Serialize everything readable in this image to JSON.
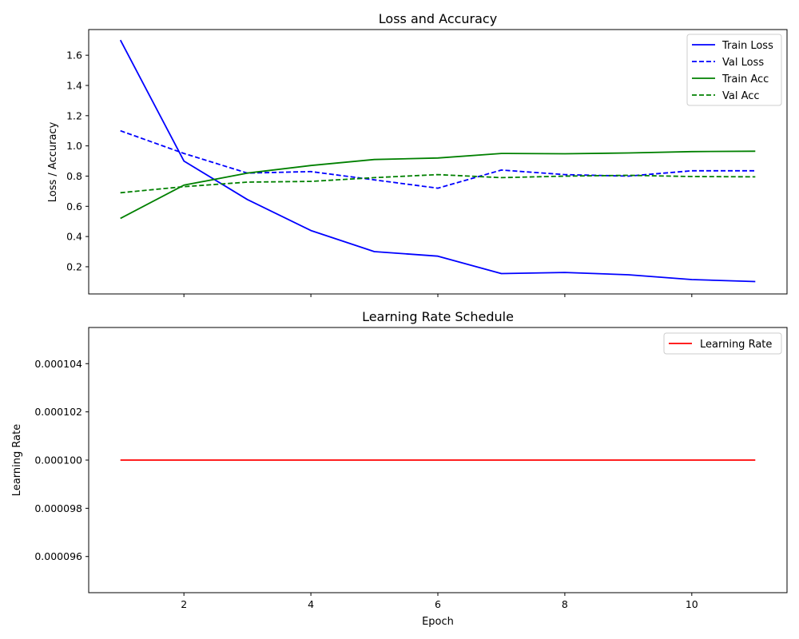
{
  "chart_data": [
    {
      "type": "line",
      "title": "Loss and Accuracy",
      "xlabel": "",
      "ylabel": "Loss / Accuracy",
      "xlim": [
        0.5,
        11.5
      ],
      "ylim": [
        0.02,
        1.77
      ],
      "x_ticks": [
        2,
        4,
        6,
        8,
        10
      ],
      "x_tick_labels_visible": false,
      "y_ticks": [
        0.2,
        0.4,
        0.6,
        0.8,
        1.0,
        1.2,
        1.4,
        1.6
      ],
      "y_tick_labels": [
        "0.2",
        "0.4",
        "0.6",
        "0.8",
        "1.0",
        "1.2",
        "1.4",
        "1.6"
      ],
      "grid": false,
      "legend": "top-right",
      "x": [
        1,
        2,
        3,
        4,
        5,
        6,
        7,
        8,
        9,
        10,
        11
      ],
      "series": [
        {
          "name": "Train Loss",
          "color": "#0000ff",
          "style": "solid",
          "values": [
            1.7,
            0.9,
            0.645,
            0.44,
            0.3,
            0.27,
            0.155,
            0.162,
            0.147,
            0.115,
            0.102
          ]
        },
        {
          "name": "Val Loss",
          "color": "#0000ff",
          "style": "dashed",
          "values": [
            1.1,
            0.95,
            0.82,
            0.83,
            0.775,
            0.72,
            0.84,
            0.81,
            0.8,
            0.835,
            0.835
          ]
        },
        {
          "name": "Train Acc",
          "color": "#008000",
          "style": "solid",
          "values": [
            0.52,
            0.74,
            0.82,
            0.87,
            0.91,
            0.92,
            0.95,
            0.948,
            0.953,
            0.962,
            0.965
          ]
        },
        {
          "name": "Val Acc",
          "color": "#008000",
          "style": "dashed",
          "values": [
            0.69,
            0.73,
            0.76,
            0.765,
            0.79,
            0.81,
            0.79,
            0.8,
            0.805,
            0.797,
            0.795
          ]
        }
      ]
    },
    {
      "type": "line",
      "title": "Learning Rate Schedule",
      "xlabel": "Epoch",
      "ylabel": "Learning Rate",
      "xlim": [
        0.5,
        11.5
      ],
      "ylim": [
        9.45e-05,
        0.0001055
      ],
      "x_ticks": [
        2,
        4,
        6,
        8,
        10
      ],
      "x_tick_labels": [
        "2",
        "4",
        "6",
        "8",
        "10"
      ],
      "y_ticks": [
        9.6e-05,
        9.8e-05,
        0.0001,
        0.000102,
        0.000104
      ],
      "y_tick_labels": [
        "0.000096",
        "0.000098",
        "0.000100",
        "0.000102",
        "0.000104"
      ],
      "grid": false,
      "legend": "top-right",
      "x": [
        1,
        2,
        3,
        4,
        5,
        6,
        7,
        8,
        9,
        10,
        11
      ],
      "series": [
        {
          "name": "Learning Rate",
          "color": "#ff0000",
          "style": "solid",
          "values": [
            0.0001,
            0.0001,
            0.0001,
            0.0001,
            0.0001,
            0.0001,
            0.0001,
            0.0001,
            0.0001,
            0.0001,
            0.0001
          ]
        }
      ]
    }
  ]
}
